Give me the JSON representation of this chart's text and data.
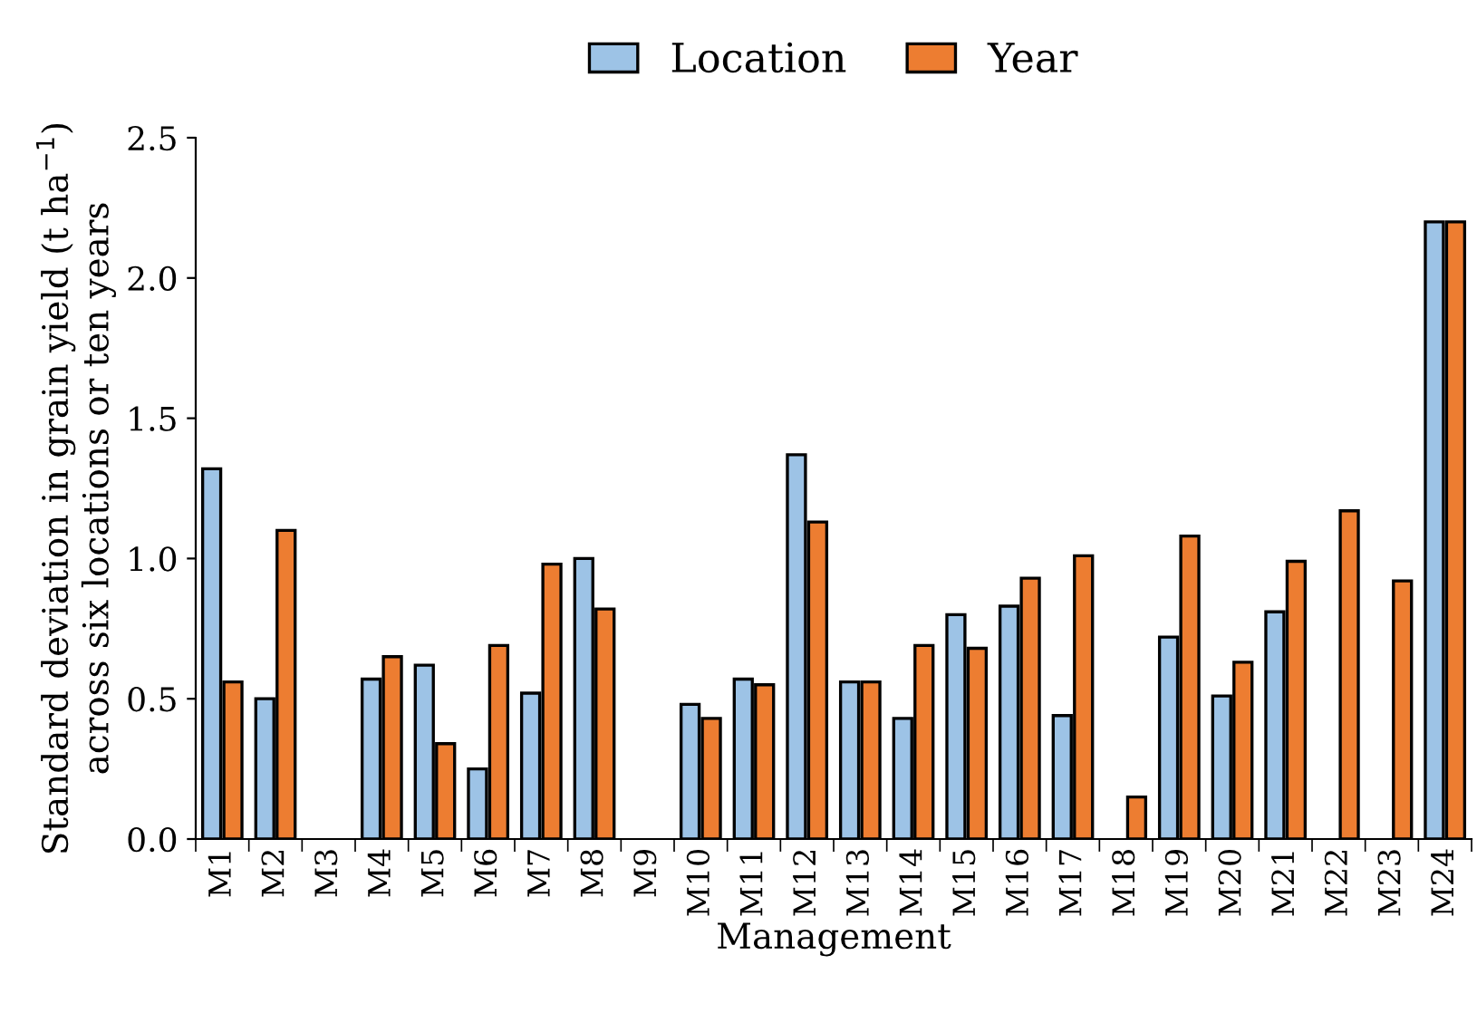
{
  "chart_data": {
    "type": "bar",
    "xlabel": "Management",
    "ylabel": "Standard deviation in grain yield (t ha$^{−1}$)\nacross six locations or ten years",
    "categories": [
      "M1",
      "M2",
      "M3",
      "M4",
      "M5",
      "M6",
      "M7",
      "M8",
      "M9",
      "M10",
      "M11",
      "M12",
      "M13",
      "M14",
      "M15",
      "M16",
      "M17",
      "M18",
      "M19",
      "M20",
      "M21",
      "M22",
      "M23",
      "M24"
    ],
    "series": [
      {
        "name": "Location",
        "color": "#9dc3e6",
        "values": [
          1.32,
          0.5,
          null,
          0.57,
          0.62,
          0.25,
          0.52,
          1.0,
          null,
          0.48,
          0.57,
          1.37,
          0.56,
          0.43,
          0.8,
          0.83,
          0.44,
          null,
          0.72,
          0.51,
          0.81,
          null,
          null,
          2.2
        ]
      },
      {
        "name": "Year",
        "color": "#ed7d31",
        "values": [
          0.56,
          1.1,
          null,
          0.65,
          0.34,
          0.69,
          0.98,
          0.82,
          null,
          0.43,
          0.55,
          1.13,
          0.56,
          0.69,
          0.68,
          0.93,
          1.01,
          0.15,
          1.08,
          0.63,
          0.99,
          1.17,
          0.92,
          2.2
        ]
      }
    ],
    "ylim": [
      0,
      2.5
    ],
    "yticks": [
      {
        "value": 0,
        "label": "0.0"
      },
      {
        "value": 0.5,
        "label": "0.5"
      },
      {
        "value": 1,
        "label": "1.0"
      },
      {
        "value": 1.5,
        "label": "1.5"
      },
      {
        "value": 2,
        "label": "2.0"
      },
      {
        "value": 2.5,
        "label": "2.5"
      }
    ],
    "grid": false,
    "legend": "top"
  }
}
